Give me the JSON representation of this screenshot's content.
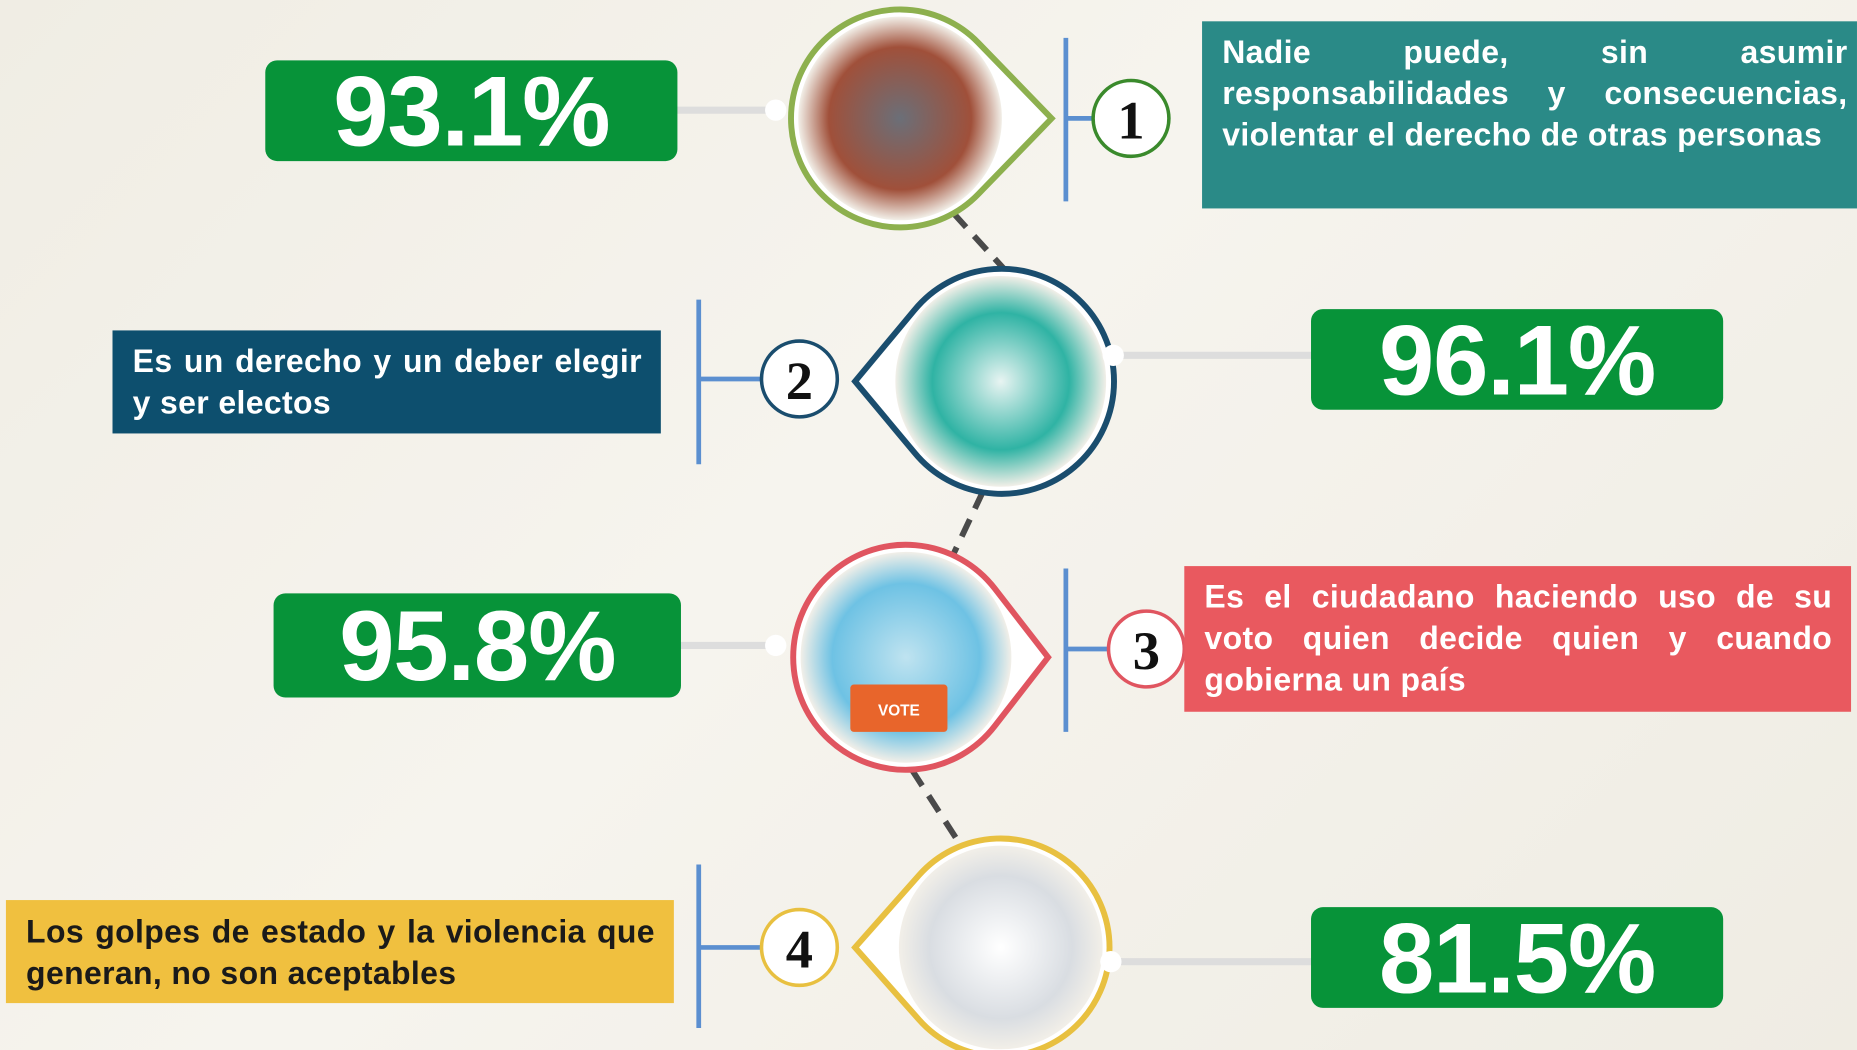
{
  "items": [
    {
      "number": "1",
      "percent": "93.1%",
      "text": "Nadie puede, sin asumir responsabilidades y consecuencias, violentar el derecho de otras personas"
    },
    {
      "number": "2",
      "percent": "96.1%",
      "text": "Es un derecho y un deber elegir y ser electos"
    },
    {
      "number": "3",
      "percent": "95.8%",
      "text": "Es el ciudadano haciendo uso de su voto quien decide quien y cuando gobierna un país"
    },
    {
      "number": "4",
      "percent": "81.5%",
      "text": "Los golpes de estado y la violencia que generan, no son aceptables"
    }
  ]
}
